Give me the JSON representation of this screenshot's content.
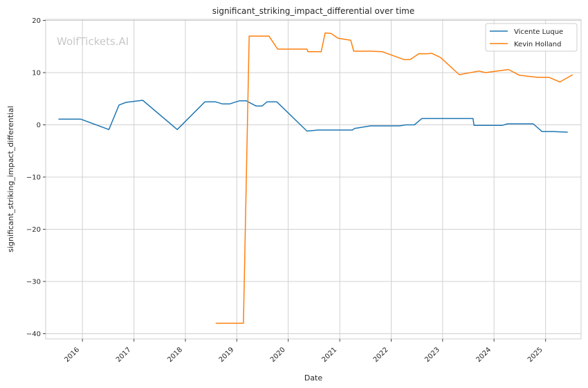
{
  "watermark": "WolfTickets.AI",
  "chart_data": {
    "type": "line",
    "title": "significant_striking_impact_differential over time",
    "xlabel": "Date",
    "ylabel": "significant_striking_impact_differential",
    "xlim": [
      "2015-04-15",
      "2025-09-10"
    ],
    "ylim": [
      -41,
      20.2
    ],
    "xticks": [
      "2016",
      "2017",
      "2018",
      "2019",
      "2020",
      "2021",
      "2022",
      "2023",
      "2024",
      "2025"
    ],
    "yticks": [
      20,
      10,
      0,
      -10,
      -20,
      -30,
      -40
    ],
    "ytick_labels": [
      "20",
      "10",
      "0",
      "−10",
      "−20",
      "−30",
      "−40"
    ],
    "grid": true,
    "legend_position": "top-right",
    "series": [
      {
        "name": "Vicente Luque",
        "color": "#1f77b4",
        "points": [
          [
            "2015-07-15",
            1.1
          ],
          [
            "2015-12-19",
            1.1
          ],
          [
            "2016-07-07",
            -0.9
          ],
          [
            "2016-09-17",
            3.8
          ],
          [
            "2016-11-05",
            4.3
          ],
          [
            "2017-03-04",
            4.7
          ],
          [
            "2017-11-04",
            -0.9
          ],
          [
            "2018-05-19",
            4.4
          ],
          [
            "2018-08-04",
            4.4
          ],
          [
            "2018-09-22",
            4.0
          ],
          [
            "2018-11-10",
            4.0
          ],
          [
            "2019-01-19",
            4.6
          ],
          [
            "2019-03-09",
            4.6
          ],
          [
            "2019-05-18",
            3.6
          ],
          [
            "2019-06-29",
            3.6
          ],
          [
            "2019-08-03",
            4.4
          ],
          [
            "2019-10-12",
            4.4
          ],
          [
            "2020-05-13",
            -1.2
          ],
          [
            "2020-08-01",
            -1.0
          ],
          [
            "2021-04-01",
            -1.0
          ],
          [
            "2021-04-15",
            -0.7
          ],
          [
            "2021-08-07",
            -0.2
          ],
          [
            "2022-03-01",
            -0.2
          ],
          [
            "2022-04-16",
            0.0
          ],
          [
            "2022-06-15",
            0.0
          ],
          [
            "2022-08-06",
            1.2
          ],
          [
            "2023-08-05",
            1.2
          ],
          [
            "2023-08-12",
            -0.1
          ],
          [
            "2024-03-01",
            -0.1
          ],
          [
            "2024-04-06",
            0.2
          ],
          [
            "2024-10-05",
            0.2
          ],
          [
            "2024-12-07",
            -1.3
          ],
          [
            "2025-03-01",
            -1.3
          ],
          [
            "2025-06-07",
            -1.4
          ]
        ]
      },
      {
        "name": "Kevin Holland",
        "color": "#ff7f0e",
        "points": [
          [
            "2018-08-04",
            -38.0
          ],
          [
            "2019-02-17",
            -38.0
          ],
          [
            "2019-03-30",
            17.0
          ],
          [
            "2019-08-17",
            17.0
          ],
          [
            "2019-10-18",
            14.5
          ],
          [
            "2020-05-13",
            14.5
          ],
          [
            "2020-05-20",
            14.0
          ],
          [
            "2020-08-22",
            14.0
          ],
          [
            "2020-09-19",
            17.6
          ],
          [
            "2020-10-31",
            17.5
          ],
          [
            "2020-12-19",
            16.6
          ],
          [
            "2021-03-20",
            16.2
          ],
          [
            "2021-04-10",
            14.1
          ],
          [
            "2021-08-07",
            14.1
          ],
          [
            "2021-10-30",
            14.0
          ],
          [
            "2022-04-01",
            12.5
          ],
          [
            "2022-05-15",
            12.5
          ],
          [
            "2022-07-16",
            13.6
          ],
          [
            "2022-09-10",
            13.6
          ],
          [
            "2022-10-15",
            13.7
          ],
          [
            "2022-12-17",
            12.9
          ],
          [
            "2023-04-29",
            9.6
          ],
          [
            "2023-09-16",
            10.3
          ],
          [
            "2023-11-01",
            10.0
          ],
          [
            "2024-04-13",
            10.6
          ],
          [
            "2024-06-29",
            9.5
          ],
          [
            "2024-11-02",
            9.1
          ],
          [
            "2025-01-25",
            9.1
          ],
          [
            "2025-04-12",
            8.2
          ],
          [
            "2025-07-12",
            9.6
          ]
        ]
      }
    ]
  }
}
